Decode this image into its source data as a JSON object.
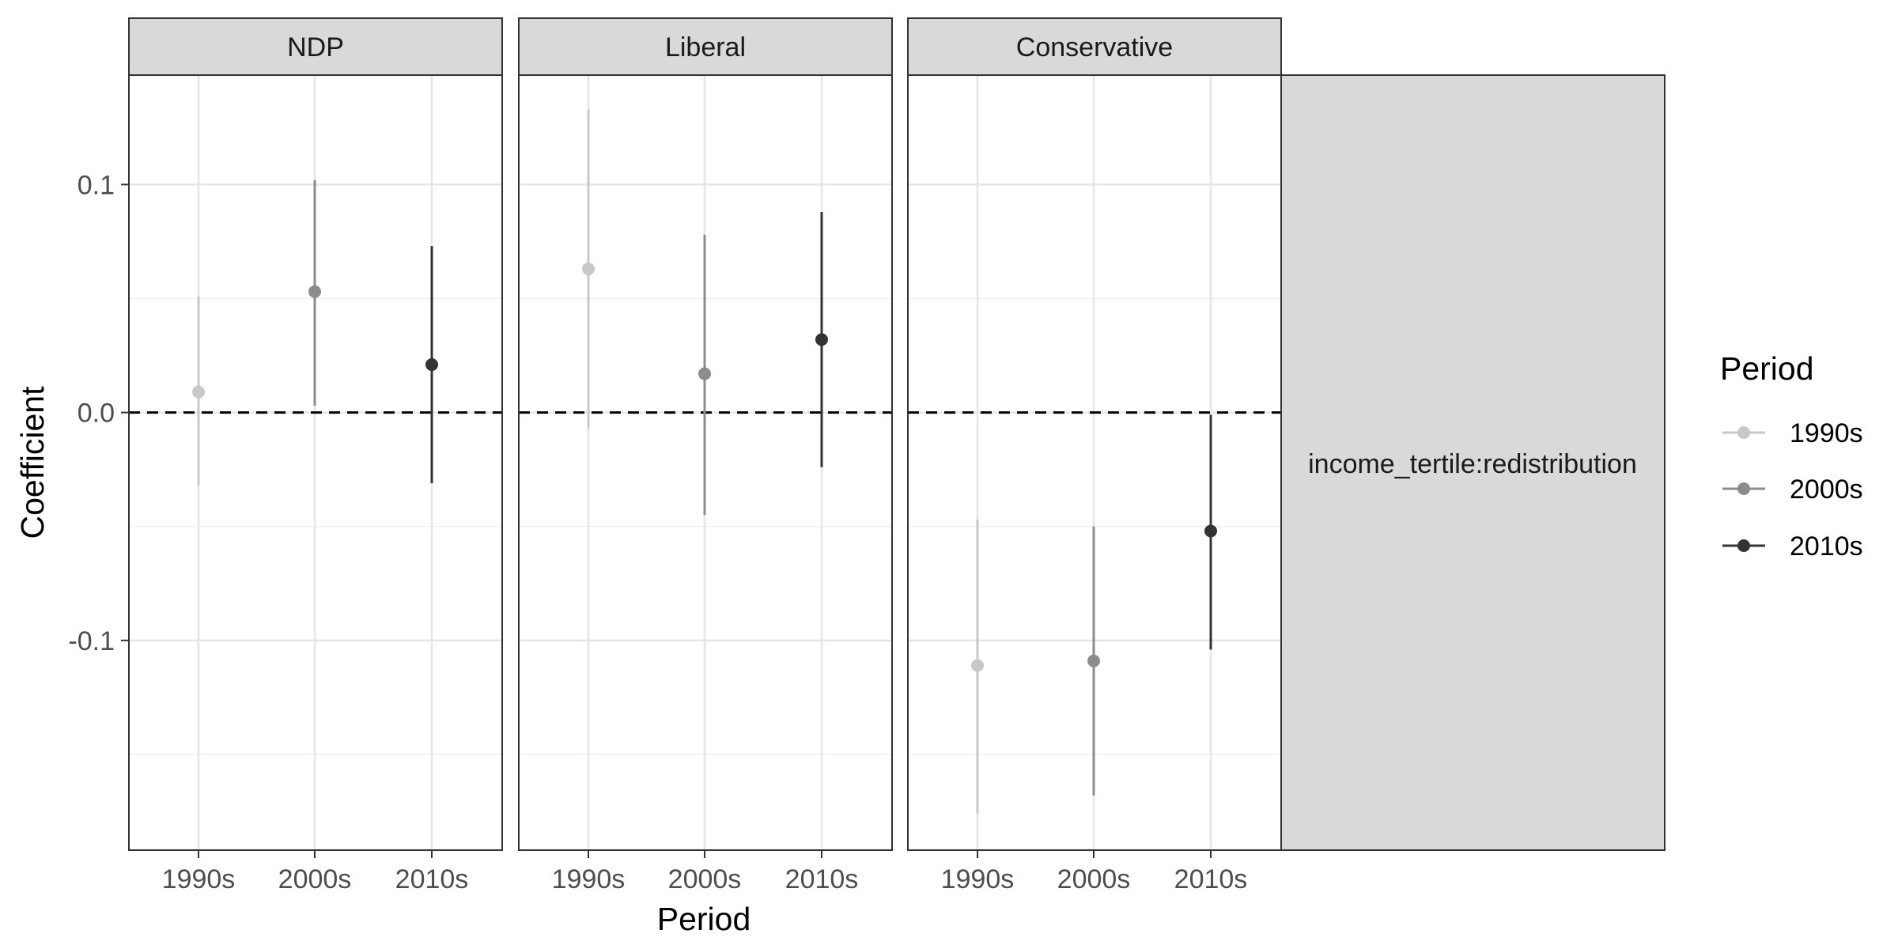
{
  "chart_data": {
    "type": "scatter",
    "subtype": "pointrange-facets",
    "xlabel": "Period",
    "ylabel": "Coefficient",
    "ylim": [
      -0.192,
      0.148
    ],
    "y_ticks": [
      "0.1",
      "0.0",
      "-0.1"
    ],
    "categories": [
      "1990s",
      "2000s",
      "2010s"
    ],
    "reference_line": 0.0,
    "legend": {
      "title": "Period",
      "position": "right",
      "entries": [
        "1990s",
        "2000s",
        "2010s"
      ]
    },
    "colors": {
      "1990s": "#c8c8c8",
      "2000s": "#8c8c8c",
      "2010s": "#333333"
    },
    "facets": [
      {
        "label": "NDP",
        "points": [
          {
            "period": "1990s",
            "estimate": 0.009,
            "low": -0.032,
            "high": 0.051
          },
          {
            "period": "2000s",
            "estimate": 0.053,
            "low": 0.003,
            "high": 0.102
          },
          {
            "period": "2010s",
            "estimate": 0.021,
            "low": -0.031,
            "high": 0.073
          }
        ]
      },
      {
        "label": "Liberal",
        "points": [
          {
            "period": "1990s",
            "estimate": 0.063,
            "low": -0.007,
            "high": 0.133
          },
          {
            "period": "2000s",
            "estimate": 0.017,
            "low": -0.045,
            "high": 0.078
          },
          {
            "period": "2010s",
            "estimate": 0.032,
            "low": -0.024,
            "high": 0.088
          }
        ]
      },
      {
        "label": "Conservative",
        "points": [
          {
            "period": "1990s",
            "estimate": -0.111,
            "low": -0.176,
            "high": -0.047
          },
          {
            "period": "2000s",
            "estimate": -0.109,
            "low": -0.168,
            "high": -0.05
          },
          {
            "period": "2010s",
            "estimate": -0.052,
            "low": -0.104,
            "high": -0.001
          }
        ]
      }
    ],
    "side_strip_label": "income_tertile:redistribution"
  }
}
